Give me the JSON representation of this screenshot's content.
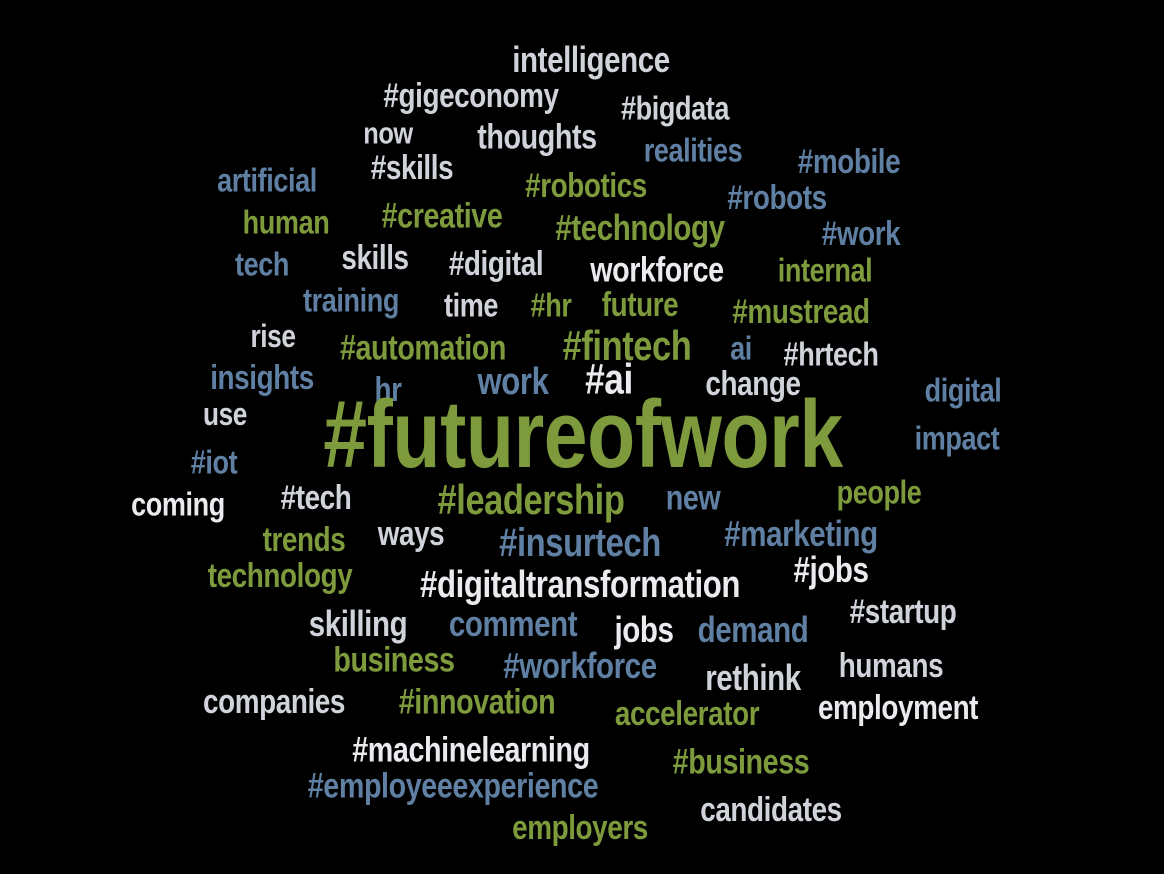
{
  "palette": {
    "green": "#7d9a3c",
    "blue": "#5f7fa3",
    "light": "#d0d4da",
    "white": "#e9ebee",
    "background": "#000000"
  },
  "words": [
    {
      "text": "intelligence",
      "color": "light"
    },
    {
      "text": "#gigeconomy",
      "color": "light"
    },
    {
      "text": "#bigdata",
      "color": "light"
    },
    {
      "text": "now",
      "color": "light"
    },
    {
      "text": "thoughts",
      "color": "light"
    },
    {
      "text": "realities",
      "color": "blue"
    },
    {
      "text": "#mobile",
      "color": "blue"
    },
    {
      "text": "artificial",
      "color": "blue"
    },
    {
      "text": "#skills",
      "color": "light"
    },
    {
      "text": "#robotics",
      "color": "green"
    },
    {
      "text": "#robots",
      "color": "blue"
    },
    {
      "text": "human",
      "color": "green"
    },
    {
      "text": "#creative",
      "color": "green"
    },
    {
      "text": "#technology",
      "color": "green"
    },
    {
      "text": "#work",
      "color": "blue"
    },
    {
      "text": "tech",
      "color": "blue"
    },
    {
      "text": "skills",
      "color": "light"
    },
    {
      "text": "#digital",
      "color": "light"
    },
    {
      "text": "workforce",
      "color": "white"
    },
    {
      "text": "internal",
      "color": "green"
    },
    {
      "text": "training",
      "color": "blue"
    },
    {
      "text": "time",
      "color": "light"
    },
    {
      "text": "#hr",
      "color": "green"
    },
    {
      "text": "future",
      "color": "green"
    },
    {
      "text": "#mustread",
      "color": "green"
    },
    {
      "text": "rise",
      "color": "light"
    },
    {
      "text": "#automation",
      "color": "green"
    },
    {
      "text": "#fintech",
      "color": "green"
    },
    {
      "text": "ai",
      "color": "blue"
    },
    {
      "text": "#hrtech",
      "color": "light"
    },
    {
      "text": "insights",
      "color": "blue"
    },
    {
      "text": "hr",
      "color": "blue"
    },
    {
      "text": "work",
      "color": "blue"
    },
    {
      "text": "#ai",
      "color": "white"
    },
    {
      "text": "change",
      "color": "light"
    },
    {
      "text": "digital",
      "color": "blue"
    },
    {
      "text": "use",
      "color": "light"
    },
    {
      "text": "#futureofwork",
      "color": "green"
    },
    {
      "text": "impact",
      "color": "blue"
    },
    {
      "text": "#iot",
      "color": "blue"
    },
    {
      "text": "coming",
      "color": "white"
    },
    {
      "text": "#tech",
      "color": "light"
    },
    {
      "text": "#leadership",
      "color": "green"
    },
    {
      "text": "new",
      "color": "blue"
    },
    {
      "text": "people",
      "color": "green"
    },
    {
      "text": "trends",
      "color": "green"
    },
    {
      "text": "ways",
      "color": "light"
    },
    {
      "text": "#insurtech",
      "color": "blue"
    },
    {
      "text": "#marketing",
      "color": "blue"
    },
    {
      "text": "technology",
      "color": "green"
    },
    {
      "text": "#digitaltransformation",
      "color": "white"
    },
    {
      "text": "#jobs",
      "color": "white"
    },
    {
      "text": "skilling",
      "color": "light"
    },
    {
      "text": "comment",
      "color": "blue"
    },
    {
      "text": "jobs",
      "color": "white"
    },
    {
      "text": "demand",
      "color": "blue"
    },
    {
      "text": "#startup",
      "color": "light"
    },
    {
      "text": "business",
      "color": "green"
    },
    {
      "text": "#workforce",
      "color": "blue"
    },
    {
      "text": "rethink",
      "color": "light"
    },
    {
      "text": "humans",
      "color": "light"
    },
    {
      "text": "companies",
      "color": "light"
    },
    {
      "text": "#innovation",
      "color": "green"
    },
    {
      "text": "accelerator",
      "color": "green"
    },
    {
      "text": "employment",
      "color": "white"
    },
    {
      "text": "#machinelearning",
      "color": "white"
    },
    {
      "text": "#business",
      "color": "green"
    },
    {
      "text": "#employeeexperience",
      "color": "blue"
    },
    {
      "text": "employers",
      "color": "green"
    },
    {
      "text": "candidates",
      "color": "light"
    }
  ]
}
